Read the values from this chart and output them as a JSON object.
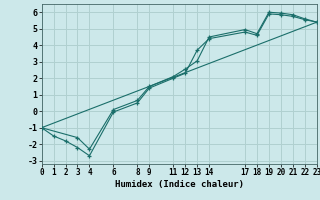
{
  "xlabel": "Humidex (Indice chaleur)",
  "bg_color": "#cce8ea",
  "grid_color": "#b0d0d0",
  "line_color": "#1a6e6a",
  "line1_x": [
    0,
    1,
    2,
    3,
    4,
    6,
    8,
    9,
    11,
    12,
    13,
    14,
    17,
    18,
    19,
    20,
    21,
    22,
    23
  ],
  "line1_y": [
    -1,
    -1.5,
    -1.8,
    -2.2,
    -2.7,
    -0.05,
    0.5,
    1.4,
    2.0,
    2.3,
    3.7,
    4.4,
    4.8,
    4.6,
    5.9,
    5.85,
    5.75,
    5.55,
    5.4
  ],
  "line2_x": [
    0,
    3,
    4,
    6,
    8,
    9,
    11,
    12,
    13,
    14,
    17,
    18,
    19,
    20,
    21,
    22,
    23
  ],
  "line2_y": [
    -1,
    -1.6,
    -2.3,
    0.1,
    0.65,
    1.5,
    2.1,
    2.55,
    3.05,
    4.5,
    4.95,
    4.7,
    6.0,
    5.95,
    5.85,
    5.6,
    5.4
  ],
  "line3_x": [
    0,
    23
  ],
  "line3_y": [
    -1,
    5.4
  ],
  "xlim": [
    0,
    23
  ],
  "ylim": [
    -3.2,
    6.5
  ],
  "xticks": [
    0,
    1,
    2,
    3,
    4,
    6,
    8,
    9,
    11,
    12,
    13,
    14,
    17,
    18,
    19,
    20,
    21,
    22,
    23
  ],
  "yticks": [
    -3,
    -2,
    -1,
    0,
    1,
    2,
    3,
    4,
    5,
    6
  ]
}
